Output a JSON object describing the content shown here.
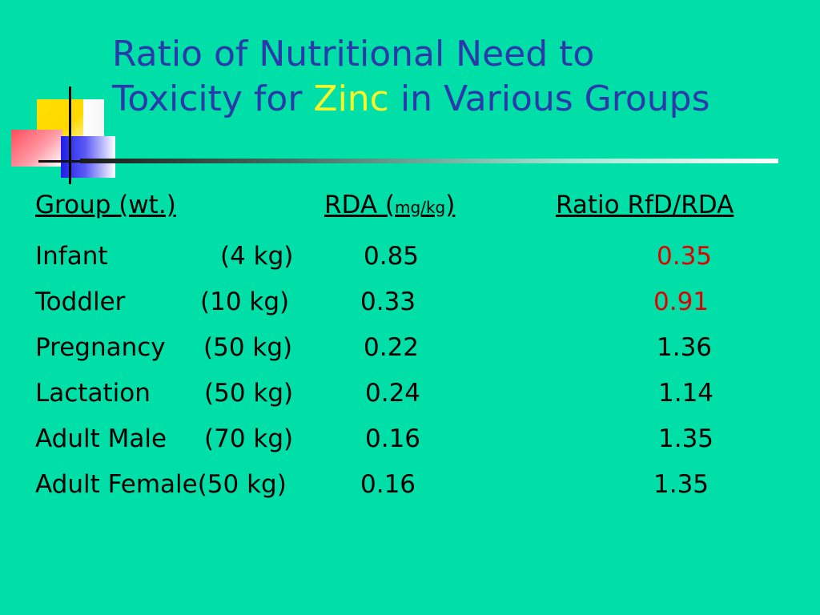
{
  "slide": {
    "title_line1": "Ratio of Nutritional Need to",
    "title_line2_before": "Toxicity for ",
    "title_highlight": "Zinc",
    "title_line2_after": " in Various Groups",
    "colors": {
      "background": "#00dfa8",
      "title": "#2b3aa8",
      "highlight": "#f5f528",
      "alert": "#e00000"
    }
  },
  "table": {
    "headers": {
      "group": "Group (wt.)",
      "rda_prefix": "RDA (",
      "rda_unit": "mg/kg",
      "rda_suffix": ")",
      "ratio": "Ratio RfD/RDA"
    },
    "rows": [
      {
        "group": "Infant",
        "weight": "(4 kg)",
        "rda": "0.85",
        "ratio": "0.35",
        "flag": true
      },
      {
        "group": "Toddler",
        "weight": "(10 kg)",
        "rda": "0.33",
        "ratio": "0.91",
        "flag": true
      },
      {
        "group": "Pregnancy",
        "weight": "(50 kg)",
        "rda": "0.22",
        "ratio": "1.36",
        "flag": false
      },
      {
        "group": "Lactation",
        "weight": "(50 kg)",
        "rda": "0.24",
        "ratio": "1.14",
        "flag": false
      },
      {
        "group": "Adult Male",
        "weight": "(70 kg)",
        "rda": "0.16",
        "ratio": "1.35",
        "flag": false
      },
      {
        "group": "Adult Female",
        "weight": "(50 kg)",
        "rda": "0.16",
        "ratio": "1.35",
        "flag": false
      }
    ]
  }
}
